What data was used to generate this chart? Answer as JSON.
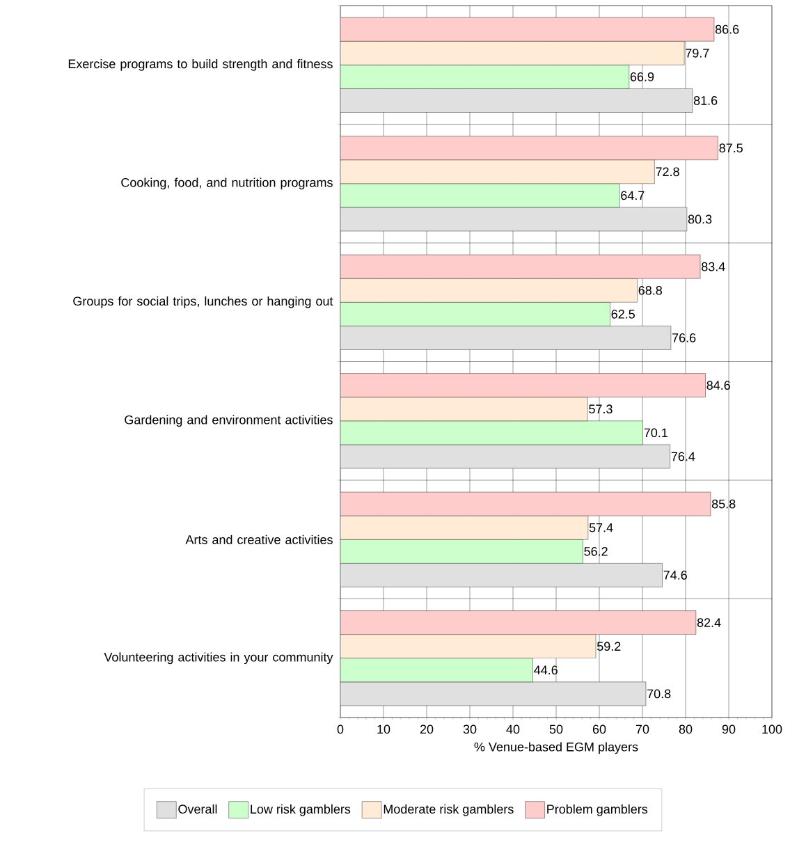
{
  "chart_data": {
    "type": "bar",
    "orientation": "horizontal",
    "xlabel": "% Venue-based EGM players",
    "categories": [
      "Exercise programs to build strength and fitness",
      "Cooking, food, and nutrition programs",
      "Groups for social trips, lunches or hanging out",
      "Gardening and environment activities",
      "Arts and creative activities",
      "Volunteering activities in your community"
    ],
    "series": [
      {
        "name": "Overall",
        "color": "#e0e0e0",
        "values": [
          81.6,
          80.3,
          76.6,
          76.4,
          74.6,
          70.8
        ]
      },
      {
        "name": "Low risk gamblers",
        "color": "#ccffcc",
        "values": [
          66.9,
          64.7,
          62.5,
          70.1,
          56.2,
          44.6
        ]
      },
      {
        "name": "Moderate risk gamblers",
        "color": "#ffebd6",
        "values": [
          79.7,
          72.8,
          68.8,
          57.3,
          57.4,
          59.2
        ]
      },
      {
        "name": "Problem gamblers",
        "color": "#ffcccc",
        "values": [
          86.6,
          87.5,
          83.4,
          84.6,
          85.8,
          82.4
        ]
      }
    ],
    "xlim": [
      0,
      100
    ],
    "xticks": [
      0,
      10,
      20,
      30,
      40,
      50,
      60,
      70,
      80,
      90,
      100
    ],
    "grid": "x",
    "legend": "bottom",
    "data_labels": true
  }
}
